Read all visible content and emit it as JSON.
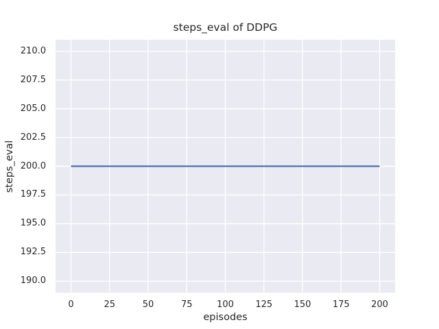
{
  "chart_data": {
    "type": "line",
    "title": "steps_eval of DDPG",
    "xlabel": "episodes",
    "ylabel": "steps_eval",
    "xlim": [
      -10,
      210
    ],
    "ylim": [
      189,
      211
    ],
    "xticks": {
      "values": [
        0,
        25,
        50,
        75,
        100,
        125,
        150,
        175,
        200
      ],
      "labels": [
        "0",
        "25",
        "50",
        "75",
        "100",
        "125",
        "150",
        "175",
        "200"
      ]
    },
    "yticks": {
      "values": [
        190.0,
        192.5,
        195.0,
        197.5,
        200.0,
        202.5,
        205.0,
        207.5,
        210.0
      ],
      "labels": [
        "190.0",
        "192.5",
        "195.0",
        "197.5",
        "200.0",
        "202.5",
        "205.0",
        "207.5",
        "210.0"
      ]
    },
    "grid": true,
    "legend": "none",
    "plot_background_color": "#eaeaf2",
    "gridline_color": "#ffffff",
    "text_color": "#262626",
    "series": [
      {
        "name": "steps_eval",
        "color": "#4c72b0",
        "x": [
          0,
          200
        ],
        "y": [
          200,
          200
        ],
        "note": "constant value 200 for every episode from 0 to 200"
      }
    ]
  }
}
